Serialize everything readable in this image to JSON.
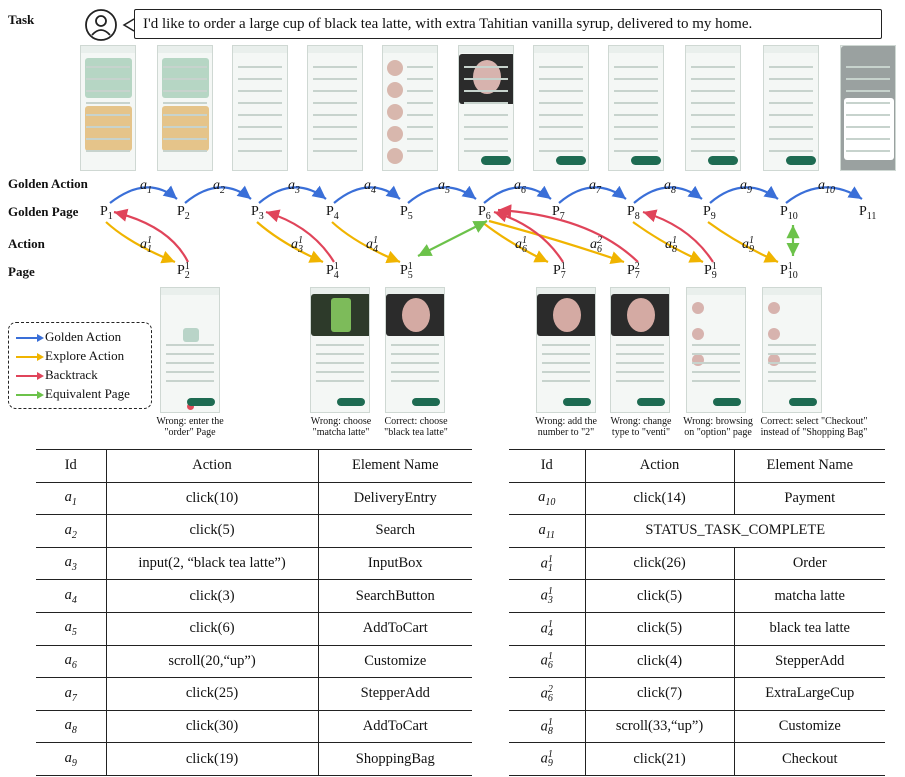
{
  "labels": {
    "task": "Task",
    "golden_action": "Golden Action",
    "golden_page": "Golden Page",
    "action": "Action",
    "page": "Page"
  },
  "task_text": "I'd like to order a large cup of black tea latte, with extra Tahitian vanilla syrup, delivered to my home.",
  "golden_actions": [
    "a1",
    "a2",
    "a3",
    "a4",
    "a5",
    "a6",
    "a7",
    "a8",
    "a9",
    "a10"
  ],
  "golden_pages": [
    "P1",
    "P2",
    "P3",
    "P4",
    "P5",
    "P6",
    "P7",
    "P8",
    "P9",
    "P10",
    "P11"
  ],
  "explore_actions": [
    "a1^1",
    "a3^1",
    "a4^1",
    "a6^1",
    "a6^2",
    "a8^1",
    "a9^1"
  ],
  "explore_pages": [
    "P2^1",
    "P4^1",
    "P5^1",
    "P7^1",
    "P7^2",
    "P9^1",
    "P10^1"
  ],
  "legend": [
    {
      "label": "Golden Action",
      "color": "#3a6fd8"
    },
    {
      "label": "Explore Action",
      "color": "#f0b400"
    },
    {
      "label": "Backtrack",
      "color": "#e0445a"
    },
    {
      "label": "Equivalent Page",
      "color": "#6cc24a"
    }
  ],
  "captions": [
    "Wrong: enter the \"order\" Page",
    "Wrong: choose \"matcha latte\"",
    "Correct: choose \"black tea latte\"",
    "Wrong: add the number to \"2\"",
    "Wrong: change type to \"venti\"",
    "Wrong: browsing on \"option\" page",
    "Correct: select \"Checkout\" instead of \"Shopping Bag\""
  ],
  "table_headers": [
    "Id",
    "Action",
    "Element Name"
  ],
  "table_left": [
    {
      "id": "a1",
      "action": "click(10)",
      "element": "DeliveryEntry"
    },
    {
      "id": "a2",
      "action": "click(5)",
      "element": "Search"
    },
    {
      "id": "a3",
      "action": "input(2, “black tea latte”)",
      "element": "InputBox"
    },
    {
      "id": "a4",
      "action": "click(3)",
      "element": "SearchButton"
    },
    {
      "id": "a5",
      "action": "click(6)",
      "element": "AddToCart"
    },
    {
      "id": "a6",
      "action": "scroll(20,“up”)",
      "element": "Customize"
    },
    {
      "id": "a7",
      "action": "click(25)",
      "element": "StepperAdd"
    },
    {
      "id": "a8",
      "action": "click(30)",
      "element": "AddToCart"
    },
    {
      "id": "a9",
      "action": "click(19)",
      "element": "ShoppingBag"
    }
  ],
  "table_right": [
    {
      "id": "a10",
      "action": "click(14)",
      "element": "Payment"
    },
    {
      "id": "a11",
      "action": "STATUS_TASK_COMPLETE",
      "element": ""
    },
    {
      "id": "a1^1",
      "action": "click(26)",
      "element": "Order"
    },
    {
      "id": "a3^1",
      "action": "click(5)",
      "element": "matcha latte"
    },
    {
      "id": "a4^1",
      "action": "click(5)",
      "element": "black tea latte"
    },
    {
      "id": "a6^1",
      "action": "click(4)",
      "element": "StepperAdd"
    },
    {
      "id": "a6^2",
      "action": "click(7)",
      "element": "ExtraLargeCup"
    },
    {
      "id": "a8^1",
      "action": "scroll(33,“up”)",
      "element": "Customize"
    },
    {
      "id": "a9^1",
      "action": "click(21)",
      "element": "Checkout"
    }
  ]
}
